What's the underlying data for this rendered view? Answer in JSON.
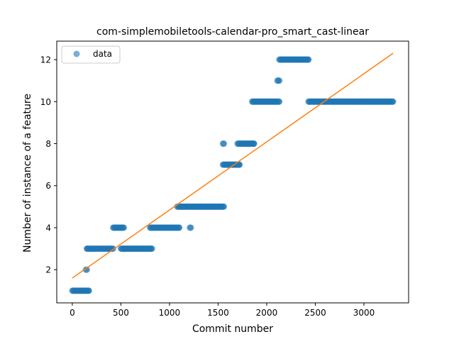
{
  "chart_data": {
    "type": "scatter",
    "title": "com-simplemobiletools-calendar-pro_smart_cast-linear",
    "xlabel": "Commit number",
    "ylabel": "Number of instance of a feature",
    "xlim": [
      -160,
      3460
    ],
    "ylim": [
      0.42,
      12.88
    ],
    "xticks": [
      0,
      500,
      1000,
      1500,
      2000,
      2500,
      3000
    ],
    "yticks": [
      2,
      4,
      6,
      8,
      10,
      12
    ],
    "grid": false,
    "legend": {
      "placement": "top-left",
      "entries": [
        "data"
      ]
    },
    "colors": {
      "data": "#1f77b4",
      "fit": "#ff7f0e"
    },
    "series": [
      {
        "name": "data",
        "kind": "scatter",
        "segments": [
          {
            "x": [
              0,
              170
            ],
            "y": 1
          },
          {
            "x": 140,
            "y": 2
          },
          {
            "x": 150,
            "y": 2
          },
          {
            "x": 150,
            "y": 3
          },
          {
            "x": 155,
            "y": 3
          },
          {
            "x": 160,
            "y": 3
          },
          {
            "x": 170,
            "y": 3
          },
          {
            "x": 180,
            "y": 3
          },
          {
            "x": 190,
            "y": 3
          },
          {
            "x": 200,
            "y": 3
          },
          {
            "x": 210,
            "y": 3
          },
          {
            "x": 220,
            "y": 3
          },
          {
            "x": 230,
            "y": 3
          },
          {
            "x": 240,
            "y": 3
          },
          {
            "x": 250,
            "y": 3
          },
          {
            "x": 260,
            "y": 3
          },
          {
            "x": 270,
            "y": 3
          },
          {
            "x": 280,
            "y": 3
          },
          {
            "x": 290,
            "y": 3
          },
          {
            "x": 300,
            "y": 3
          },
          {
            "x": 310,
            "y": 3
          },
          {
            "x": 320,
            "y": 3
          },
          {
            "x": 330,
            "y": 3
          },
          {
            "x": 340,
            "y": 3
          },
          {
            "x": 350,
            "y": 3
          },
          {
            "x": 360,
            "y": 3
          },
          {
            "x": 370,
            "y": 3
          },
          {
            "x": 380,
            "y": 3
          },
          {
            "x": 390,
            "y": 3
          },
          {
            "x": 400,
            "y": 3
          },
          {
            "x": 410,
            "y": 3
          },
          {
            "x": 420,
            "y": 3
          },
          {
            "x": [
              420,
              530
            ],
            "y": 4
          },
          {
            "x": [
              500,
              820
            ],
            "y": 3
          },
          {
            "x": [
              800,
              1100
            ],
            "y": 4
          },
          {
            "x": 1210,
            "y": 4
          },
          {
            "x": 1220,
            "y": 4
          },
          {
            "x": [
              1080,
              1560
            ],
            "y": 5
          },
          {
            "x": 1550,
            "y": 8
          },
          {
            "x": 1560,
            "y": 8
          },
          {
            "x": [
              1550,
              1720
            ],
            "y": 7
          },
          {
            "x": [
              1700,
              1870
            ],
            "y": 8
          },
          {
            "x": [
              1850,
              2130
            ],
            "y": 10
          },
          {
            "x": 2110,
            "y": 11
          },
          {
            "x": 2120,
            "y": 11
          },
          {
            "x": 2130,
            "y": 11
          },
          {
            "x": [
              2130,
              2430
            ],
            "y": 12
          },
          {
            "x": [
              2430,
              3300
            ],
            "y": 10
          }
        ]
      },
      {
        "kind": "line",
        "x": [
          0,
          3300
        ],
        "y": [
          1.6,
          12.3
        ]
      }
    ]
  }
}
